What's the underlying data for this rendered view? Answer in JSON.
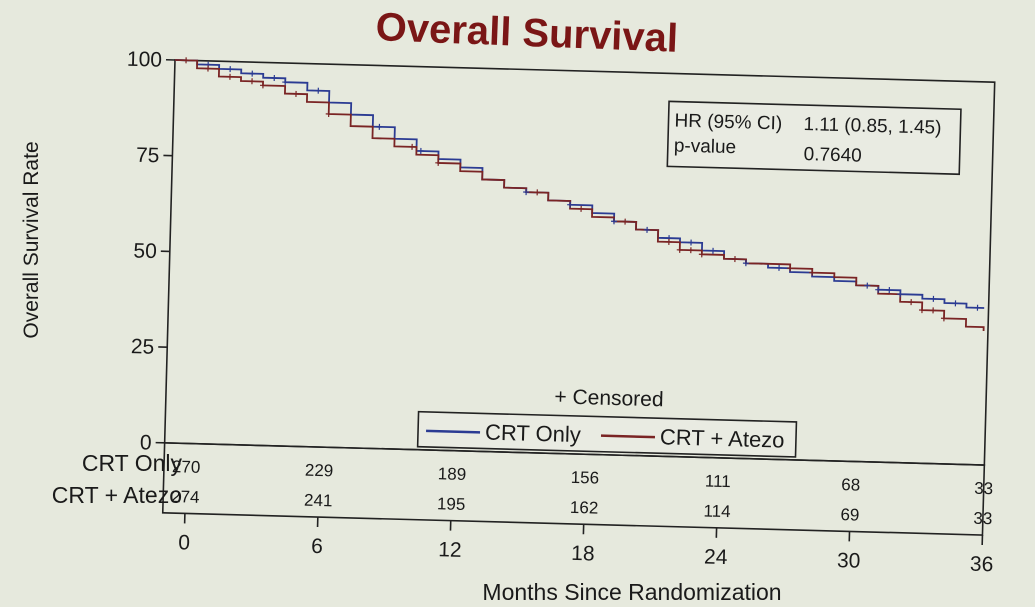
{
  "chart_data": {
    "type": "line",
    "title": "Overall Survival",
    "xlabel": "Months Since Randomization",
    "ylabel": "Overall Survival Rate",
    "xlim": [
      -1,
      36
    ],
    "ylim": [
      0,
      100
    ],
    "xticks": [
      "0",
      "6",
      "12",
      "18",
      "24",
      "30",
      "36"
    ],
    "xtick_values": [
      0,
      6,
      12,
      18,
      24,
      30,
      36
    ],
    "yticks": [
      "0",
      "25",
      "50",
      "75",
      "100"
    ],
    "ytick_values": [
      0,
      25,
      50,
      75,
      100
    ],
    "stats": {
      "hr_label": "HR (95% CI)",
      "hr_value": "1.11 (0.85, 1.45)",
      "p_label": "p-value",
      "p_value": "0.7640"
    },
    "censored_label": "+ Censored",
    "series": [
      {
        "name": "CRT Only",
        "color": "#2b3b93",
        "points": [
          [
            -1,
            100
          ],
          [
            0,
            99
          ],
          [
            1,
            98
          ],
          [
            2,
            97
          ],
          [
            3,
            96
          ],
          [
            4,
            95
          ],
          [
            5,
            93
          ],
          [
            6,
            90
          ],
          [
            7,
            87
          ],
          [
            8,
            84
          ],
          [
            9,
            81
          ],
          [
            10,
            78
          ],
          [
            11,
            76
          ],
          [
            12,
            74
          ],
          [
            13,
            71
          ],
          [
            14,
            69
          ],
          [
            15,
            68
          ],
          [
            16,
            66
          ],
          [
            17,
            65
          ],
          [
            18,
            63
          ],
          [
            19,
            61
          ],
          [
            20,
            59
          ],
          [
            21,
            57
          ],
          [
            22,
            56
          ],
          [
            23,
            54
          ],
          [
            24,
            52
          ],
          [
            25,
            51
          ],
          [
            26,
            50
          ],
          [
            27,
            49
          ],
          [
            28,
            48
          ],
          [
            29,
            47
          ],
          [
            30,
            46
          ],
          [
            31,
            45
          ],
          [
            32,
            44
          ],
          [
            33,
            43
          ],
          [
            34,
            42
          ],
          [
            35,
            41
          ],
          [
            35.8,
            41
          ]
        ],
        "censor_at": [
          0.5,
          1.5,
          2.5,
          3.5,
          4,
          5.5,
          8.3,
          10.2,
          15,
          17,
          19,
          20.5,
          21.5,
          22.5,
          23.5,
          25,
          26.5,
          30.5,
          31,
          31.5,
          32,
          33.5,
          34.5,
          35.5
        ]
      },
      {
        "name": "CRT + Atezo",
        "color": "#7a2424",
        "points": [
          [
            -1,
            100
          ],
          [
            0,
            98
          ],
          [
            1,
            96
          ],
          [
            2,
            95
          ],
          [
            3,
            94
          ],
          [
            4,
            92
          ],
          [
            5,
            90
          ],
          [
            6,
            87
          ],
          [
            7,
            84
          ],
          [
            8,
            81
          ],
          [
            9,
            79
          ],
          [
            10,
            77
          ],
          [
            11,
            75
          ],
          [
            12,
            73
          ],
          [
            13,
            71
          ],
          [
            14,
            69
          ],
          [
            15,
            68
          ],
          [
            16,
            66
          ],
          [
            17,
            64
          ],
          [
            18,
            62
          ],
          [
            19,
            61
          ],
          [
            20,
            59
          ],
          [
            21,
            56
          ],
          [
            22,
            54
          ],
          [
            23,
            53
          ],
          [
            24,
            52
          ],
          [
            25,
            51
          ],
          [
            26,
            51
          ],
          [
            27,
            50
          ],
          [
            28,
            49
          ],
          [
            29,
            48
          ],
          [
            30,
            46
          ],
          [
            31,
            44
          ],
          [
            32,
            42
          ],
          [
            33,
            40
          ],
          [
            34,
            38
          ],
          [
            35,
            36
          ],
          [
            35.8,
            35
          ]
        ],
        "censor_at": [
          -0.5,
          0.5,
          1.5,
          2.5,
          3,
          4.5,
          6,
          9.8,
          11,
          15.5,
          17.5,
          19.5,
          21.5,
          22,
          22.5,
          23,
          24.5,
          27,
          28,
          32.5,
          33,
          33.5,
          34
        ]
      }
    ],
    "risk_table": {
      "rows": [
        {
          "label": "CRT Only",
          "values": [
            "270",
            "229",
            "189",
            "156",
            "111",
            "68",
            "33"
          ]
        },
        {
          "label": "CRT + Atezo",
          "values": [
            "274",
            "241",
            "195",
            "162",
            "114",
            "69",
            "33"
          ]
        }
      ]
    }
  }
}
